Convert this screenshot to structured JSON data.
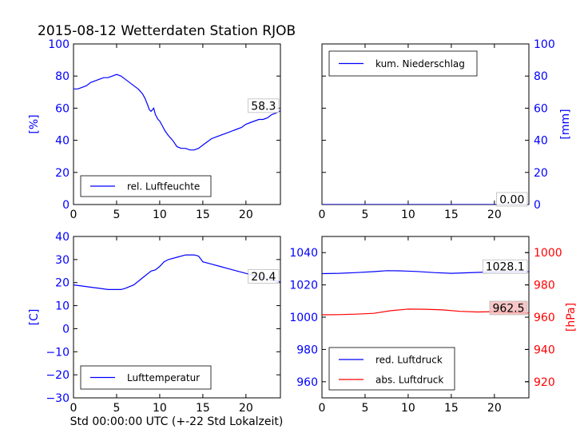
{
  "title": "2015-08-12 Wetterdaten Station RJOB",
  "footer_xlabel": "Std 00:00:00 UTC (+-22 Std Lokalzeit)",
  "colors": {
    "blue": "#0000ff",
    "red": "#ff0000",
    "black": "#000000",
    "label_box_red": "#f6bcbc"
  },
  "chart_data": [
    {
      "id": "humidity",
      "type": "line",
      "xlim": [
        0,
        24
      ],
      "ylim": [
        0,
        100
      ],
      "xticks": [
        0,
        5,
        10,
        15,
        20
      ],
      "yticks": [
        0,
        20,
        40,
        60,
        80,
        100
      ],
      "ylabel": "[%]",
      "legend": "bottom-left",
      "last_label": "58.3",
      "series": [
        {
          "name": "rel. Luftfeuchte",
          "color": "#0000ff",
          "x": [
            0,
            0.5,
            1,
            1.5,
            2,
            2.5,
            3,
            3.5,
            4,
            4.5,
            5,
            5.5,
            6,
            6.5,
            7,
            7.5,
            8,
            8.3,
            8.6,
            8.8,
            9,
            9.3,
            9.5,
            9.8,
            10,
            10.3,
            10.6,
            11,
            11.5,
            12,
            12.5,
            13,
            13.5,
            14,
            14.5,
            15,
            15.5,
            16,
            16.5,
            17,
            17.5,
            18,
            18.5,
            19,
            19.5,
            20,
            20.5,
            21,
            21.5,
            22,
            22.5,
            23,
            23.5,
            24
          ],
          "y": [
            72,
            72,
            73,
            74,
            76,
            77,
            78,
            79,
            79,
            80,
            81,
            80,
            78,
            76,
            74,
            72,
            69,
            66,
            62,
            59,
            58,
            60,
            56,
            53,
            52,
            49,
            46,
            43,
            40,
            36,
            35,
            35,
            34,
            34,
            35,
            37,
            39,
            41,
            42,
            43,
            44,
            45,
            46,
            47,
            48,
            50,
            51,
            52,
            53,
            53,
            54,
            56,
            57,
            58.3
          ]
        }
      ]
    },
    {
      "id": "precip",
      "type": "line",
      "xlim": [
        0,
        24
      ],
      "ylim": [
        0,
        100
      ],
      "xticks": [
        0,
        5,
        10,
        15,
        20
      ],
      "yticks": [
        0,
        20,
        40,
        60,
        80,
        100
      ],
      "ylabel": "[mm]",
      "yaxis_side": "right",
      "legend": "top-left",
      "last_label": "0.00",
      "series": [
        {
          "name": "kum. Niederschlag",
          "color": "#0000ff",
          "x": [
            0,
            24
          ],
          "y": [
            0,
            0
          ]
        }
      ]
    },
    {
      "id": "temperature",
      "type": "line",
      "xlim": [
        0,
        24
      ],
      "ylim": [
        -30,
        40
      ],
      "xticks": [
        0,
        5,
        10,
        15,
        20
      ],
      "yticks": [
        -30,
        -20,
        -10,
        0,
        10,
        20,
        30,
        40
      ],
      "ylabel": "[C]",
      "legend": "bottom-left",
      "last_label": "20.4",
      "series": [
        {
          "name": "Lufttemperatur",
          "color": "#0000ff",
          "x": [
            0,
            1,
            2,
            3,
            4,
            5,
            5.5,
            6,
            7,
            8,
            9,
            9.5,
            10,
            10.5,
            11,
            12,
            13,
            14,
            14.5,
            15,
            16,
            17,
            18,
            19,
            20,
            21,
            22,
            23,
            24
          ],
          "y": [
            19,
            18.5,
            18,
            17.5,
            17,
            17,
            17,
            17.5,
            19,
            22,
            25,
            25.5,
            27,
            29,
            30,
            31,
            32,
            32,
            31.5,
            29,
            28,
            27,
            26,
            25,
            24,
            23,
            22,
            21,
            20.4
          ]
        }
      ]
    },
    {
      "id": "pressure",
      "type": "line",
      "xlim": [
        0,
        24
      ],
      "ylim": [
        950,
        1050
      ],
      "xticks": [
        0,
        5,
        10,
        15,
        20
      ],
      "yticks": [
        960,
        980,
        1000,
        1020,
        1040
      ],
      "y2lim": [
        910,
        1010
      ],
      "y2ticks": [
        920,
        940,
        960,
        980,
        1000
      ],
      "y2label": "[hPa]",
      "legend": "bottom-left",
      "series": [
        {
          "name": "red. Luftdruck",
          "color": "#0000ff",
          "axis": "left",
          "last_label": "1028.1",
          "x": [
            0,
            2,
            4,
            6,
            7.5,
            9,
            11,
            13,
            15,
            17,
            19,
            21,
            24
          ],
          "y": [
            1027,
            1027.2,
            1027.6,
            1028.2,
            1028.8,
            1028.7,
            1028.3,
            1027.6,
            1027.2,
            1027.5,
            1027.9,
            1028.0,
            1028.1
          ]
        },
        {
          "name": "abs. Luftdruck",
          "color": "#ff0000",
          "axis": "right",
          "last_label": "962.5",
          "x": [
            0,
            2,
            4,
            6,
            8,
            10,
            12,
            14,
            16,
            18,
            20,
            22,
            24
          ],
          "y": [
            961.5,
            961.6,
            961.9,
            962.4,
            964,
            965,
            964.9,
            964.5,
            963.6,
            963.2,
            963.4,
            962.9,
            962.5
          ]
        }
      ]
    }
  ]
}
